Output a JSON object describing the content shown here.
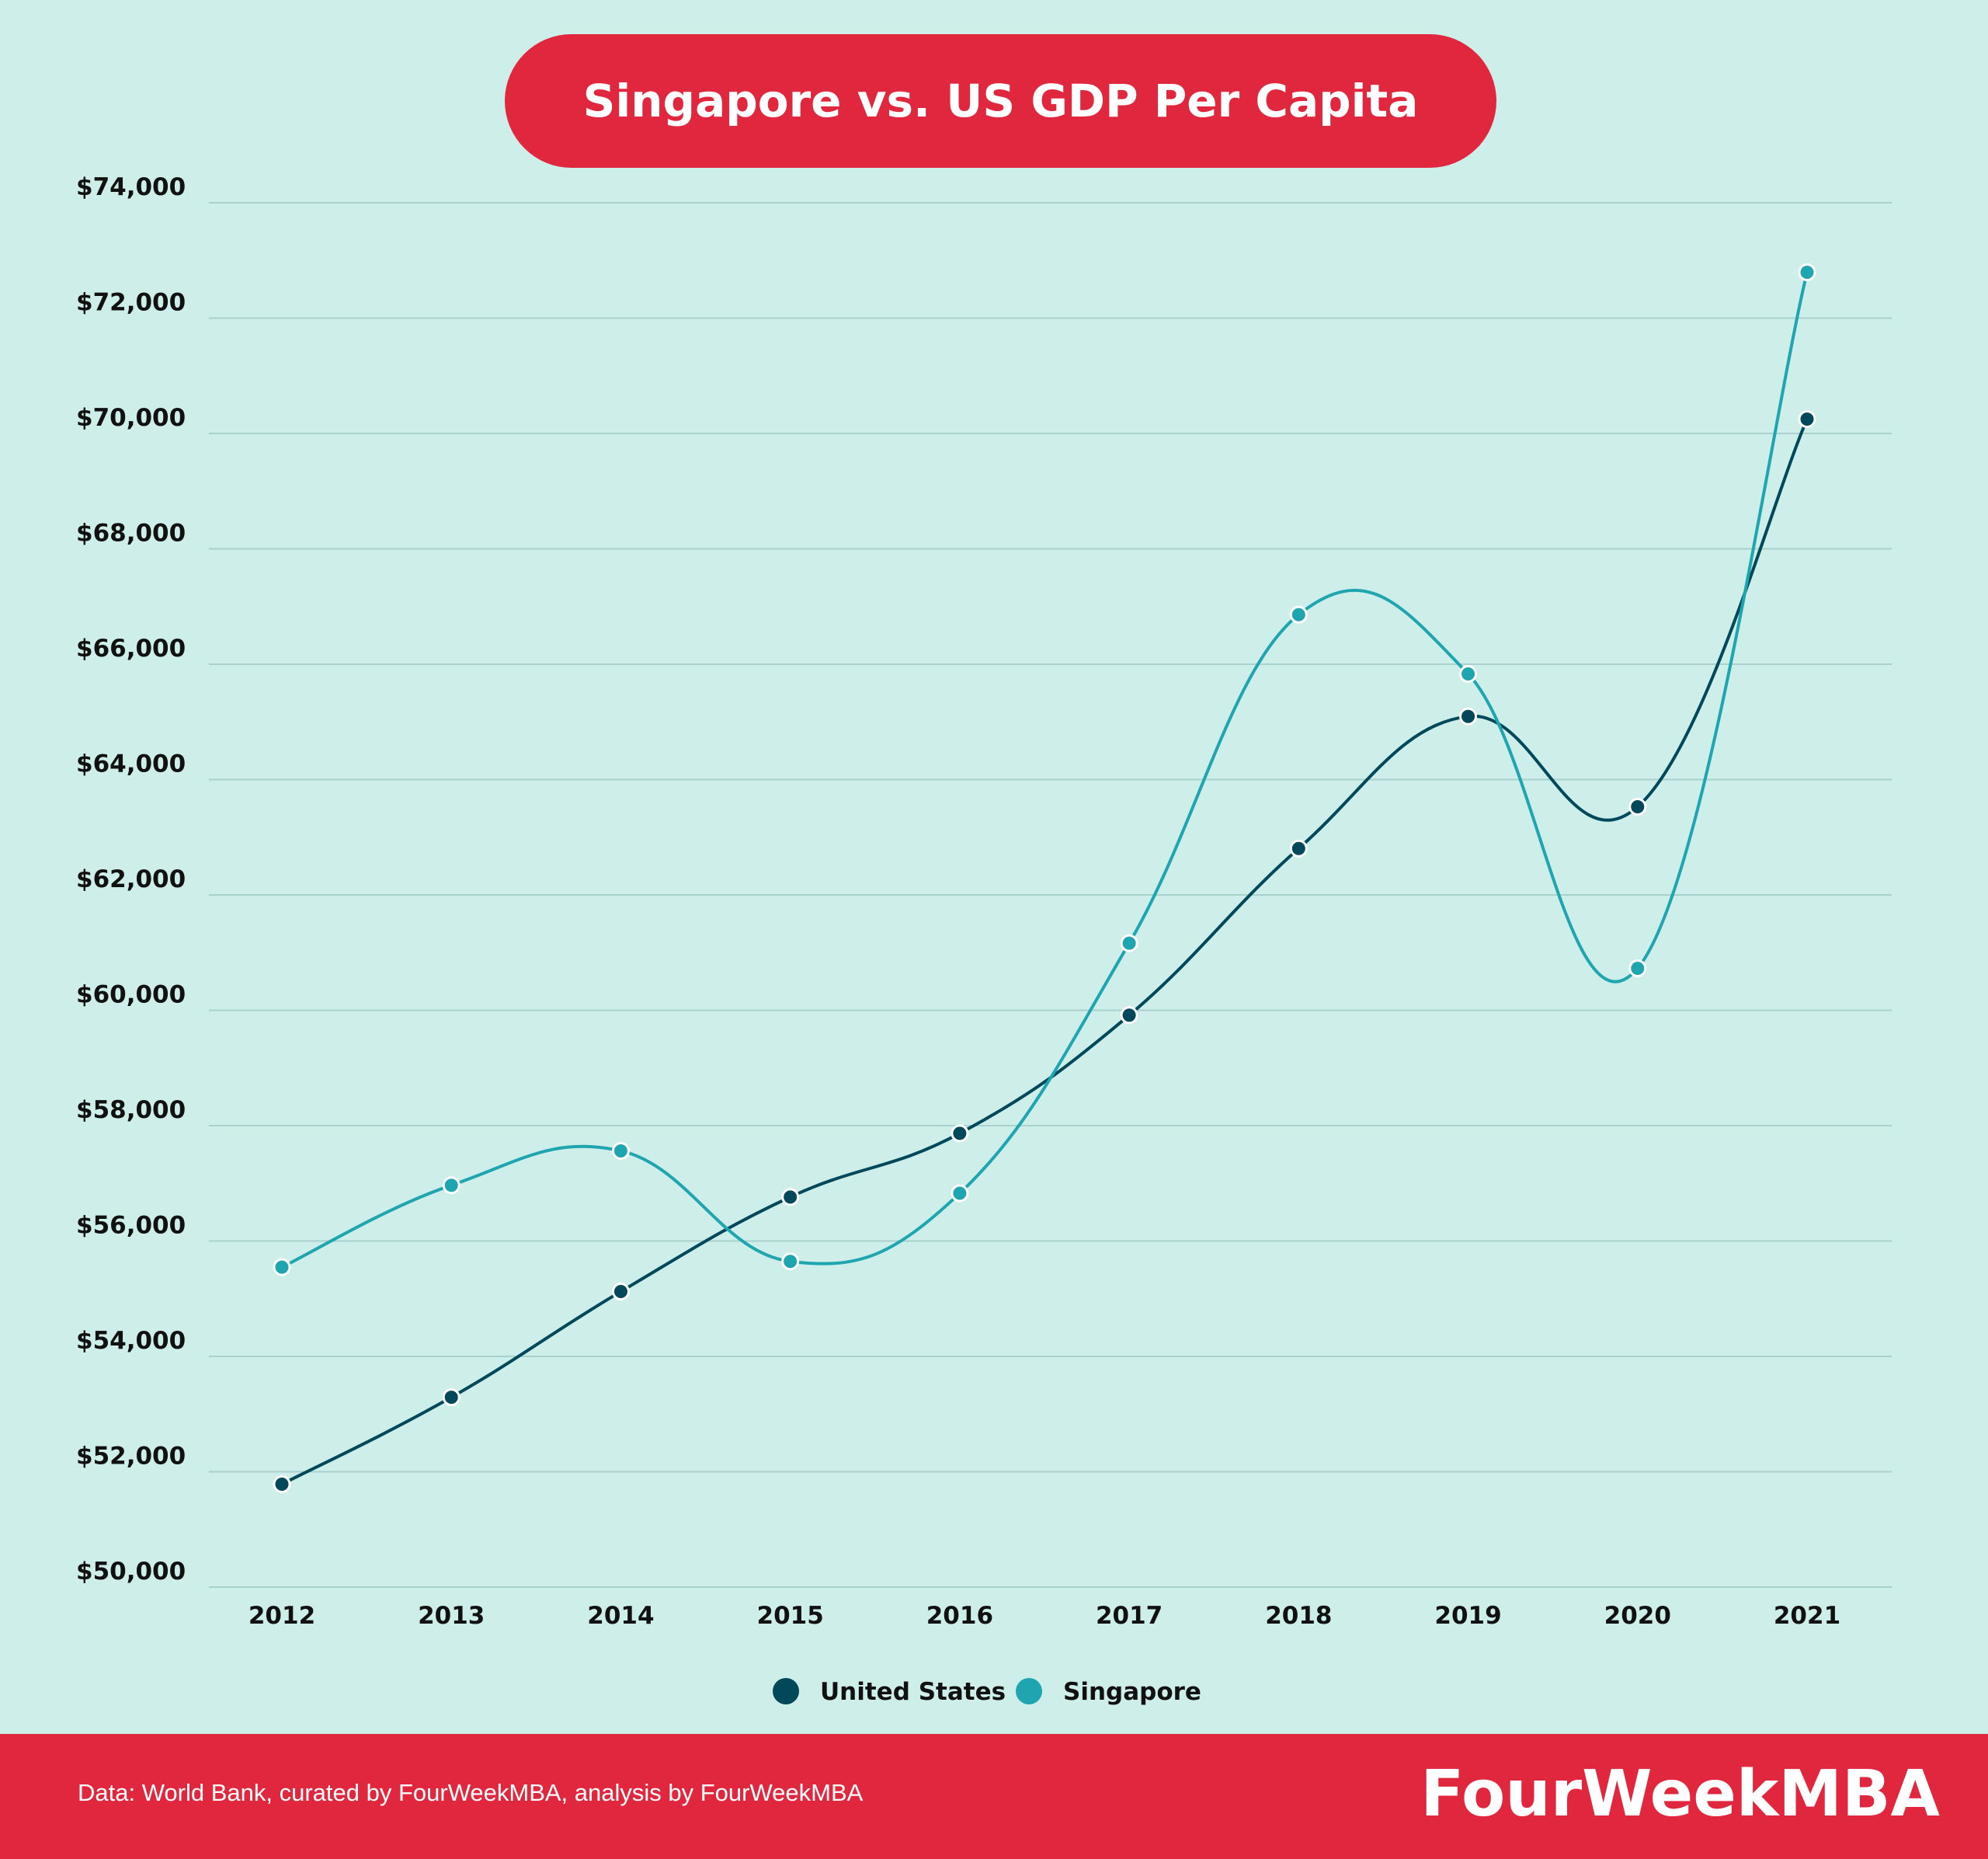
{
  "chart_data": {
    "type": "line",
    "title": "Singapore vs. US GDP Per Capita",
    "x": [
      "2012",
      "2013",
      "2014",
      "2015",
      "2016",
      "2017",
      "2018",
      "2019",
      "2020",
      "2021"
    ],
    "series": [
      {
        "name": "United States",
        "color": "#00485a",
        "values": [
          51784,
          53291,
          55124,
          56763,
          57867,
          59915,
          62805,
          65095,
          63528,
          70249
        ]
      },
      {
        "name": "Singapore",
        "color": "#1fa5b0",
        "values": [
          55547,
          56967,
          57563,
          55647,
          56828,
          61164,
          66859,
          65831,
          60728,
          72794
        ]
      }
    ],
    "ylim": [
      50000,
      74000
    ],
    "yticks": [
      50000,
      52000,
      54000,
      56000,
      58000,
      60000,
      62000,
      64000,
      66000,
      68000,
      70000,
      72000,
      74000
    ],
    "ytick_labels": [
      "$50,000",
      "$52,000",
      "$54,000",
      "$56,000",
      "$58,000",
      "$60,000",
      "$62,000",
      "$64,000",
      "$66,000",
      "$68,000",
      "$70,000",
      "$72,000",
      "$74,000"
    ],
    "grid": true,
    "legend_position": "bottom",
    "smooth": true
  },
  "footer": {
    "source": "Data: World Bank, curated by FourWeekMBA, analysis by FourWeekMBA",
    "brand": "FourWeekMBA"
  },
  "colors": {
    "background": "#cdeee9",
    "accent": "#e1273e",
    "grid": "#a9d2cf"
  }
}
